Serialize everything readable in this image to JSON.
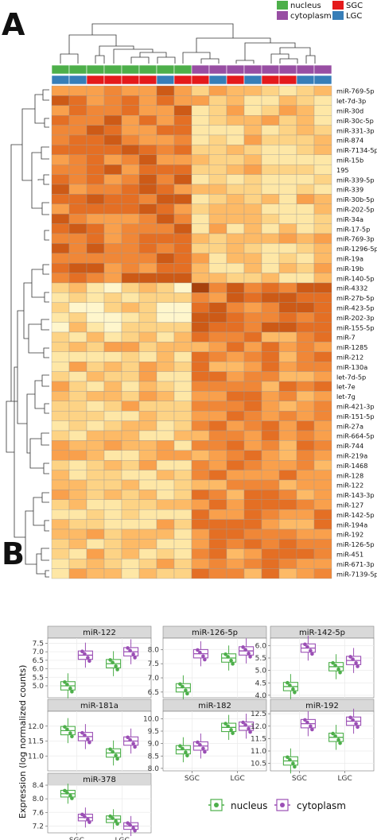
{
  "panelA": {
    "letter": "A",
    "legend": [
      {
        "label": "nucleus",
        "color": "#4daf4a"
      },
      {
        "label": "SGC",
        "color": "#e41a1c"
      },
      {
        "label": "cytoplasm",
        "color": "#984ea3"
      },
      {
        "label": "LGC",
        "color": "#377eb8"
      }
    ],
    "col_compartment": [
      "n",
      "n",
      "n",
      "n",
      "n",
      "n",
      "n",
      "n",
      "c",
      "c",
      "c",
      "c",
      "c",
      "c",
      "c",
      "c"
    ],
    "col_group": [
      "L",
      "L",
      "S",
      "S",
      "S",
      "S",
      "L",
      "S",
      "S",
      "L",
      "S",
      "L",
      "S",
      "S",
      "L",
      "L"
    ],
    "rows": [
      "miR-769-5p",
      "let-7d-3p",
      "miR-30d",
      "miR-30c-5p",
      "miR-331-3p",
      "miR-874",
      "miR-7134-5p",
      "miR-15b",
      "195",
      "miR-339-5p",
      "miR-339",
      "miR-30b-5p",
      "miR-202-5p",
      "miR-34a",
      "miR-17-5p",
      "miR-769-3p",
      "miR-1296-5p",
      "miR-19a",
      "miR-19b",
      "miR-140-5p",
      "miR-4332",
      "miR-27b-5p",
      "miR-423-5p",
      "miR-202-3p",
      "miR-155-5p",
      "miR-7",
      "miR-1285",
      "miR-212",
      "miR-130a",
      "let-7d-5p",
      "let-7e",
      "let-7g",
      "miR-421-3p",
      "miR-151-5p",
      "miR-27a",
      "miR-664-5p",
      "miR-744",
      "miR-219a",
      "miR-1468",
      "miR-128",
      "miR-122",
      "miR-143-3p",
      "miR-127",
      "miR-142-5p",
      "miR-194a",
      "miR-192",
      "miR-126-5p",
      "miR-451",
      "miR-671-3p",
      "miR-7139-5p"
    ]
  },
  "panelB": {
    "letter": "B",
    "ylabel": "Expression (log normalized counts)",
    "legend": [
      {
        "label": "nucleus",
        "color": "#4daf4a"
      },
      {
        "label": "cytoplasm",
        "color": "#9b4fb5"
      }
    ]
  },
  "chart_data": [
    {
      "type": "box",
      "title": "miR-122",
      "categories": [
        "SGC",
        "LGC"
      ],
      "ylim": [
        4.3,
        7.8
      ],
      "yticks": [
        "5.0",
        "5.5",
        "6.0",
        "6.5",
        "7.0",
        "7.5"
      ],
      "series": [
        {
          "name": "nucleus",
          "values": [
            5.0,
            6.3
          ]
        },
        {
          "name": "cytoplasm",
          "values": [
            6.8,
            7.0
          ]
        }
      ]
    },
    {
      "type": "box",
      "title": "miR-126-5p",
      "categories": [
        "SGC",
        "LGC"
      ],
      "ylim": [
        6.3,
        8.4
      ],
      "yticks": [
        "6.5",
        "7.0",
        "7.5",
        "8.0"
      ],
      "series": [
        {
          "name": "nucleus",
          "values": [
            6.65,
            7.7
          ]
        },
        {
          "name": "cytoplasm",
          "values": [
            7.85,
            7.95
          ]
        }
      ]
    },
    {
      "type": "box",
      "title": "miR-142-5p",
      "categories": [
        "SGC",
        "LGC"
      ],
      "ylim": [
        3.9,
        6.3
      ],
      "yticks": [
        "4.0",
        "4.5",
        "5.0",
        "5.5",
        "6.0"
      ],
      "series": [
        {
          "name": "nucleus",
          "values": [
            4.35,
            5.15
          ]
        },
        {
          "name": "cytoplasm",
          "values": [
            5.9,
            5.4
          ]
        }
      ]
    },
    {
      "type": "box",
      "title": "miR-181a",
      "categories": [
        "SGC",
        "LGC"
      ],
      "ylim": [
        10.5,
        12.5
      ],
      "yticks": [
        "11.0",
        "11.5",
        "12.0"
      ],
      "series": [
        {
          "name": "nucleus",
          "values": [
            11.85,
            11.1
          ]
        },
        {
          "name": "cytoplasm",
          "values": [
            11.65,
            11.5
          ]
        }
      ]
    },
    {
      "type": "box",
      "title": "miR-182",
      "categories": [
        "SGC",
        "LGC"
      ],
      "ylim": [
        7.9,
        10.3
      ],
      "yticks": [
        "8.0",
        "8.5",
        "9.0",
        "9.5",
        "10.0"
      ],
      "series": [
        {
          "name": "nucleus",
          "values": [
            8.75,
            9.65
          ]
        },
        {
          "name": "cytoplasm",
          "values": [
            8.9,
            9.7
          ]
        }
      ]
    },
    {
      "type": "box",
      "title": "miR-192",
      "categories": [
        "SGC",
        "LGC"
      ],
      "ylim": [
        10.2,
        12.6
      ],
      "yticks": [
        "10.5",
        "11.0",
        "11.5",
        "12.0",
        "12.5"
      ],
      "series": [
        {
          "name": "nucleus",
          "values": [
            10.6,
            11.55
          ]
        },
        {
          "name": "cytoplasm",
          "values": [
            12.1,
            12.2
          ]
        }
      ]
    },
    {
      "type": "box",
      "title": "miR-378",
      "categories": [
        "SGC",
        "LGC"
      ],
      "ylim": [
        7.0,
        8.4
      ],
      "yticks": [
        "7.2",
        "7.6",
        "8.0",
        "8.4"
      ],
      "series": [
        {
          "name": "nucleus",
          "values": [
            8.15,
            7.4
          ]
        },
        {
          "name": "cytoplasm",
          "values": [
            7.45,
            7.2
          ]
        }
      ]
    }
  ]
}
